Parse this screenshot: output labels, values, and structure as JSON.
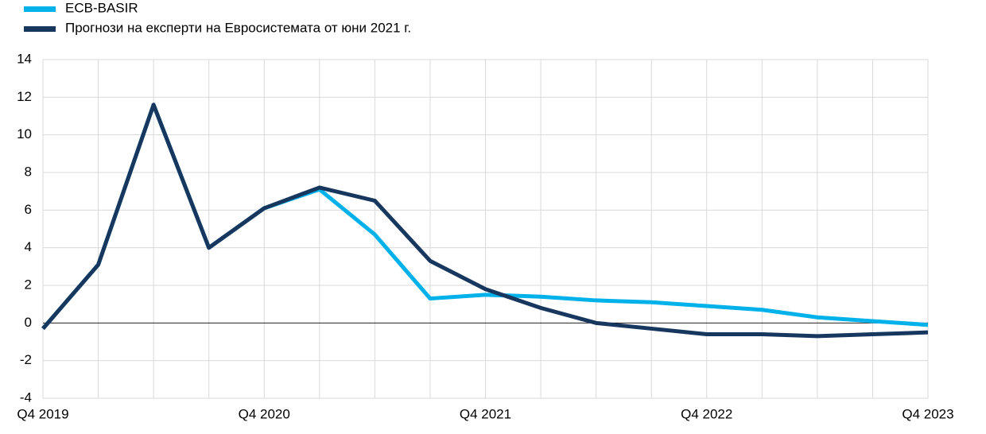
{
  "chart_data": {
    "type": "line",
    "categories": [
      "Q4 2019",
      null,
      null,
      null,
      "Q4 2020",
      null,
      null,
      null,
      "Q4 2021",
      null,
      null,
      null,
      "Q4 2022",
      null,
      null,
      null,
      "Q4 2023"
    ],
    "series": [
      {
        "name": "ECB-BASIR",
        "color": "#00b1ea",
        "values": [
          -0.3,
          3.1,
          11.6,
          4.0,
          6.1,
          7.1,
          4.7,
          1.3,
          1.5,
          1.4,
          1.2,
          1.1,
          0.9,
          0.7,
          0.3,
          0.1,
          -0.1
        ]
      },
      {
        "name": "Прогнози на експерти на Евросистемата от юни 2021 г.",
        "color": "#17375e",
        "values": [
          -0.3,
          3.1,
          11.6,
          4.0,
          6.1,
          7.2,
          6.5,
          3.3,
          1.8,
          0.8,
          0.0,
          -0.3,
          -0.6,
          -0.6,
          -0.7,
          -0.6,
          -0.5
        ]
      }
    ],
    "ylim": [
      -4,
      14
    ],
    "yticks": [
      -4,
      -2,
      0,
      2,
      4,
      6,
      8,
      10,
      12,
      14
    ],
    "grid": true
  }
}
